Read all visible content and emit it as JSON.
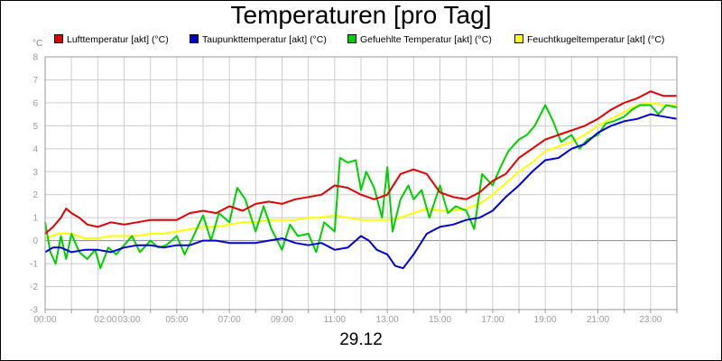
{
  "chart_data": {
    "type": "line",
    "title": "Temperaturen [pro Tag]",
    "date_label": "29.12",
    "y_unit": "°C",
    "ylim": [
      -3,
      8
    ],
    "y_ticks": [
      "-3",
      "-2",
      "-1",
      "0",
      "1",
      "2",
      "3",
      "4",
      "5",
      "6",
      "7",
      "8"
    ],
    "xlim_hours": [
      0,
      24
    ],
    "x_ticks": [
      "00:00",
      "02:00",
      "03:00",
      "05:00",
      "07:00",
      "09:00",
      "11:00",
      "13:00",
      "15:00",
      "17:00",
      "19:00",
      "21:00",
      "23:00"
    ],
    "grid": true,
    "legend_position": "top",
    "series": [
      {
        "name": "Lufttemperatur [akt] (°C)",
        "color": "#e00000",
        "points": [
          [
            0,
            0.3
          ],
          [
            0.3,
            0.6
          ],
          [
            0.6,
            1.0
          ],
          [
            0.8,
            1.4
          ],
          [
            1.0,
            1.2
          ],
          [
            1.3,
            1.0
          ],
          [
            1.6,
            0.7
          ],
          [
            2.0,
            0.6
          ],
          [
            2.5,
            0.8
          ],
          [
            3.0,
            0.7
          ],
          [
            3.5,
            0.8
          ],
          [
            4.0,
            0.9
          ],
          [
            4.5,
            0.9
          ],
          [
            5.0,
            0.9
          ],
          [
            5.5,
            1.2
          ],
          [
            6.0,
            1.3
          ],
          [
            6.5,
            1.2
          ],
          [
            7.0,
            1.5
          ],
          [
            7.5,
            1.3
          ],
          [
            8.0,
            1.6
          ],
          [
            8.5,
            1.7
          ],
          [
            9.0,
            1.6
          ],
          [
            9.5,
            1.8
          ],
          [
            10.0,
            1.9
          ],
          [
            10.5,
            2.0
          ],
          [
            11.0,
            2.4
          ],
          [
            11.5,
            2.3
          ],
          [
            12.0,
            2.0
          ],
          [
            12.5,
            1.8
          ],
          [
            13.0,
            2.0
          ],
          [
            13.5,
            2.9
          ],
          [
            14.0,
            3.1
          ],
          [
            14.5,
            2.9
          ],
          [
            15.0,
            2.1
          ],
          [
            15.5,
            1.9
          ],
          [
            16.0,
            1.8
          ],
          [
            16.5,
            2.1
          ],
          [
            17.0,
            2.6
          ],
          [
            17.5,
            2.9
          ],
          [
            18.0,
            3.6
          ],
          [
            18.5,
            4.0
          ],
          [
            19.0,
            4.4
          ],
          [
            19.5,
            4.6
          ],
          [
            20.0,
            4.8
          ],
          [
            20.5,
            5.0
          ],
          [
            21.0,
            5.3
          ],
          [
            21.5,
            5.7
          ],
          [
            22.0,
            6.0
          ],
          [
            22.5,
            6.2
          ],
          [
            23.0,
            6.5
          ],
          [
            23.5,
            6.3
          ],
          [
            24.0,
            6.3
          ]
        ]
      },
      {
        "name": "Taupunkttemperatur [akt] (°C)",
        "color": "#0000d0",
        "points": [
          [
            0,
            -0.5
          ],
          [
            0.3,
            -0.3
          ],
          [
            0.6,
            -0.3
          ],
          [
            1.0,
            -0.5
          ],
          [
            1.5,
            -0.4
          ],
          [
            2.0,
            -0.4
          ],
          [
            2.5,
            -0.5
          ],
          [
            3.0,
            -0.3
          ],
          [
            3.5,
            -0.2
          ],
          [
            4.0,
            -0.2
          ],
          [
            4.5,
            -0.3
          ],
          [
            5.0,
            -0.2
          ],
          [
            5.5,
            -0.2
          ],
          [
            6.0,
            0.0
          ],
          [
            6.5,
            0.0
          ],
          [
            7.0,
            -0.1
          ],
          [
            7.5,
            -0.1
          ],
          [
            8.0,
            -0.1
          ],
          [
            8.5,
            0.0
          ],
          [
            9.0,
            0.1
          ],
          [
            9.5,
            -0.1
          ],
          [
            10.0,
            -0.2
          ],
          [
            10.5,
            -0.1
          ],
          [
            11.0,
            -0.4
          ],
          [
            11.5,
            -0.3
          ],
          [
            12.0,
            0.2
          ],
          [
            12.3,
            0.0
          ],
          [
            12.6,
            -0.4
          ],
          [
            13.0,
            -0.6
          ],
          [
            13.3,
            -1.1
          ],
          [
            13.6,
            -1.2
          ],
          [
            14.0,
            -0.6
          ],
          [
            14.5,
            0.3
          ],
          [
            15.0,
            0.6
          ],
          [
            15.5,
            0.7
          ],
          [
            16.0,
            0.9
          ],
          [
            16.5,
            1.0
          ],
          [
            17.0,
            1.3
          ],
          [
            17.5,
            1.9
          ],
          [
            18.0,
            2.4
          ],
          [
            18.5,
            3.0
          ],
          [
            19.0,
            3.5
          ],
          [
            19.5,
            3.6
          ],
          [
            20.0,
            4.0
          ],
          [
            20.5,
            4.2
          ],
          [
            21.0,
            4.7
          ],
          [
            21.5,
            5.0
          ],
          [
            22.0,
            5.2
          ],
          [
            22.5,
            5.3
          ],
          [
            23.0,
            5.5
          ],
          [
            23.5,
            5.4
          ],
          [
            24.0,
            5.3
          ]
        ]
      },
      {
        "name": "Gefuehlte Temperatur [akt] (°C)",
        "color": "#00d000",
        "points": [
          [
            0,
            0.8
          ],
          [
            0.2,
            -0.5
          ],
          [
            0.4,
            -1.0
          ],
          [
            0.6,
            0.2
          ],
          [
            0.8,
            -0.8
          ],
          [
            1.0,
            0.3
          ],
          [
            1.3,
            -0.5
          ],
          [
            1.6,
            -0.8
          ],
          [
            1.9,
            -0.4
          ],
          [
            2.1,
            -1.2
          ],
          [
            2.4,
            -0.3
          ],
          [
            2.7,
            -0.6
          ],
          [
            3.0,
            -0.2
          ],
          [
            3.3,
            0.2
          ],
          [
            3.6,
            -0.5
          ],
          [
            4.0,
            0.0
          ],
          [
            4.3,
            -0.3
          ],
          [
            4.6,
            -0.2
          ],
          [
            5.0,
            0.2
          ],
          [
            5.3,
            -0.6
          ],
          [
            5.6,
            0.1
          ],
          [
            6.0,
            1.1
          ],
          [
            6.3,
            0.0
          ],
          [
            6.6,
            1.2
          ],
          [
            7.0,
            0.8
          ],
          [
            7.3,
            2.3
          ],
          [
            7.6,
            1.8
          ],
          [
            8.0,
            0.4
          ],
          [
            8.3,
            1.5
          ],
          [
            8.6,
            0.5
          ],
          [
            9.0,
            -0.4
          ],
          [
            9.3,
            0.7
          ],
          [
            9.6,
            0.2
          ],
          [
            10.0,
            0.3
          ],
          [
            10.3,
            -0.5
          ],
          [
            10.6,
            0.8
          ],
          [
            11.0,
            0.4
          ],
          [
            11.2,
            3.6
          ],
          [
            11.5,
            3.4
          ],
          [
            11.8,
            3.5
          ],
          [
            12.0,
            2.2
          ],
          [
            12.2,
            3.0
          ],
          [
            12.5,
            2.3
          ],
          [
            12.8,
            1.0
          ],
          [
            13.0,
            3.2
          ],
          [
            13.2,
            0.4
          ],
          [
            13.5,
            1.8
          ],
          [
            13.8,
            2.4
          ],
          [
            14.0,
            1.8
          ],
          [
            14.3,
            2.2
          ],
          [
            14.6,
            1.0
          ],
          [
            15.0,
            2.4
          ],
          [
            15.3,
            1.2
          ],
          [
            15.6,
            1.5
          ],
          [
            16.0,
            1.3
          ],
          [
            16.3,
            0.5
          ],
          [
            16.6,
            2.9
          ],
          [
            17.0,
            2.4
          ],
          [
            17.3,
            3.2
          ],
          [
            17.6,
            3.9
          ],
          [
            18.0,
            4.4
          ],
          [
            18.3,
            4.6
          ],
          [
            18.6,
            5.0
          ],
          [
            19.0,
            5.9
          ],
          [
            19.3,
            5.2
          ],
          [
            19.6,
            4.3
          ],
          [
            20.0,
            4.6
          ],
          [
            20.3,
            4.0
          ],
          [
            20.6,
            4.4
          ],
          [
            21.0,
            4.6
          ],
          [
            21.3,
            5.1
          ],
          [
            21.6,
            5.2
          ],
          [
            22.0,
            5.4
          ],
          [
            22.3,
            5.7
          ],
          [
            22.6,
            5.9
          ],
          [
            23.0,
            5.9
          ],
          [
            23.3,
            5.5
          ],
          [
            23.6,
            5.9
          ],
          [
            24.0,
            5.8
          ]
        ]
      },
      {
        "name": "Feuchtkugeltemperatur [akt] (°C)",
        "color": "#ffff00",
        "points": [
          [
            0,
            0.1
          ],
          [
            0.5,
            0.3
          ],
          [
            1.0,
            0.3
          ],
          [
            1.5,
            0.1
          ],
          [
            2.0,
            0.1
          ],
          [
            2.5,
            0.2
          ],
          [
            3.0,
            0.2
          ],
          [
            3.5,
            0.2
          ],
          [
            4.0,
            0.3
          ],
          [
            4.5,
            0.3
          ],
          [
            5.0,
            0.4
          ],
          [
            5.5,
            0.5
          ],
          [
            6.0,
            0.6
          ],
          [
            6.5,
            0.6
          ],
          [
            7.0,
            0.7
          ],
          [
            7.5,
            0.8
          ],
          [
            8.0,
            0.8
          ],
          [
            8.5,
            0.9
          ],
          [
            9.0,
            0.9
          ],
          [
            9.5,
            0.9
          ],
          [
            10.0,
            1.0
          ],
          [
            10.5,
            1.0
          ],
          [
            11.0,
            1.1
          ],
          [
            11.5,
            1.0
          ],
          [
            12.0,
            0.9
          ],
          [
            12.5,
            0.9
          ],
          [
            13.0,
            0.9
          ],
          [
            13.5,
            1.0
          ],
          [
            14.0,
            1.2
          ],
          [
            14.5,
            1.4
          ],
          [
            15.0,
            1.3
          ],
          [
            15.5,
            1.3
          ],
          [
            16.0,
            1.4
          ],
          [
            16.5,
            1.6
          ],
          [
            17.0,
            2.0
          ],
          [
            17.5,
            2.5
          ],
          [
            18.0,
            3.0
          ],
          [
            18.5,
            3.4
          ],
          [
            19.0,
            3.9
          ],
          [
            19.5,
            4.1
          ],
          [
            20.0,
            4.3
          ],
          [
            20.5,
            4.6
          ],
          [
            21.0,
            5.0
          ],
          [
            21.5,
            5.3
          ],
          [
            22.0,
            5.6
          ],
          [
            22.5,
            5.9
          ],
          [
            23.0,
            6.0
          ],
          [
            23.5,
            5.9
          ],
          [
            24.0,
            5.9
          ]
        ]
      }
    ]
  }
}
